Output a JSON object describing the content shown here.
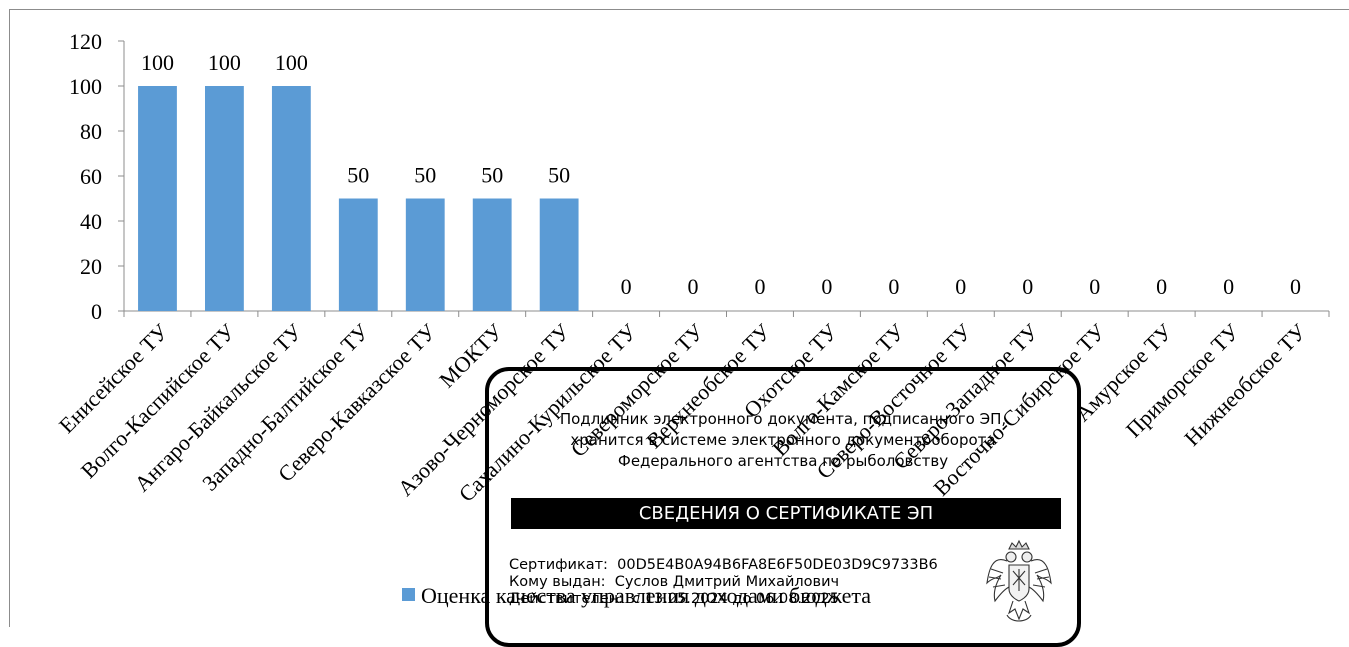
{
  "chart_data": {
    "type": "bar",
    "categories": [
      "Енисейское ТУ",
      "Волго-Каспийское ТУ",
      "Ангаро-Байкальское ТУ",
      "Западно-Балтийское ТУ",
      "Северо-Кавказское ТУ",
      "МОКТУ",
      "Азово-Черноморское ТУ",
      "Сахалино-Курильское ТУ",
      "Североморское ТУ",
      "Верхнеобское ТУ",
      "Охотское ТУ",
      "Волго-Камское ТУ",
      "Северо-Восточное ТУ",
      "Северо-Западное ТУ",
      "Восточно-Сибирское ТУ",
      "Амурское ТУ",
      "Приморское ТУ",
      "Нижнеобское ТУ"
    ],
    "series": [
      {
        "name": "Оценка качества управления доходами бюджета",
        "values": [
          100,
          100,
          100,
          50,
          50,
          50,
          50,
          0,
          0,
          0,
          0,
          0,
          0,
          0,
          0,
          0,
          0,
          0
        ],
        "color": "#5b9bd5"
      }
    ],
    "ylim": [
      0,
      120
    ],
    "yticks": [
      "0",
      "20",
      "40",
      "60",
      "80",
      "100",
      "120"
    ],
    "grid": false,
    "legend": "bottom",
    "data_labels": true
  },
  "stamp": {
    "original_lines": [
      "Подлинник электронного документа, подписанного ЭП,",
      "хранится в системе электронного документооборота",
      "Федерального агентства по рыболовству"
    ],
    "header": "СВЕДЕНИЯ О СЕРТИФИКАТЕ ЭП",
    "certificate_label": "Сертификат:",
    "certificate_value": "00D5E4B0A94B6FA8E6F50DE03D9C9733B6",
    "issued_to_label": "Кому выдан:",
    "issued_to_value": "Суслов Дмитрий Михайлович",
    "valid_label": "Действителен:",
    "valid_value": "с 13.05.2024 до 06.08.2025",
    "emblem_icon": "russian-coat-of-arms-icon"
  }
}
